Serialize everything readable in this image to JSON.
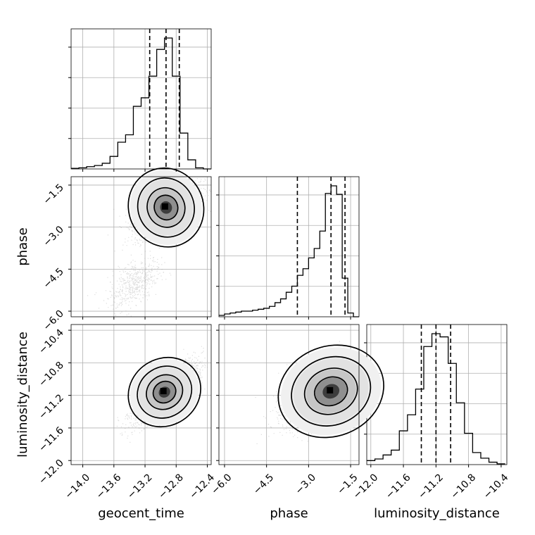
{
  "chart_data": {
    "type": "corner",
    "parameters": [
      "geocent_time",
      "phase",
      "luminosity_distance"
    ],
    "axis_labels": {
      "x": [
        "geocent_time",
        "phase",
        "luminosity_distance"
      ],
      "y": [
        "phase",
        "luminosity_distance"
      ]
    },
    "ranges": {
      "geocent_time": [
        -14.15,
        -12.35
      ],
      "phase": [
        -6.2,
        -1.2
      ],
      "luminosity_distance": [
        -12.05,
        -10.33
      ]
    },
    "ticks": {
      "geocent_time": [
        -14.0,
        -13.6,
        -13.2,
        -12.8,
        -12.4
      ],
      "phase": [
        -6.0,
        -4.5,
        -3.0,
        -1.5
      ],
      "luminosity_distance": [
        -12.0,
        -11.6,
        -11.2,
        -10.8,
        -10.4
      ]
    },
    "tick_labels": {
      "geocent_time": [
        "−14.0",
        "−13.6",
        "−13.2",
        "−12.8",
        "−12.4"
      ],
      "phase": [
        "−6.0",
        "−4.5",
        "−3.0",
        "−1.5"
      ],
      "luminosity_distance": [
        "−12.0",
        "−11.6",
        "−11.2",
        "−10.8",
        "−10.4"
      ]
    },
    "quantiles": {
      "geocent_time": [
        -13.14,
        -12.93,
        -12.76
      ],
      "phase": [
        -3.4,
        -2.2,
        -1.7
      ],
      "luminosity_distance": [
        -11.38,
        -11.2,
        -11.02
      ]
    },
    "histograms": {
      "geocent_time": {
        "edges": [
          -14.15,
          -14.05,
          -13.95,
          -13.85,
          -13.75,
          -13.65,
          -13.55,
          -13.45,
          -13.35,
          -13.25,
          -13.15,
          -13.05,
          -12.95,
          -12.85,
          -12.75,
          -12.65,
          -12.55,
          -12.45,
          -12.35
        ],
        "counts": [
          1,
          2,
          4,
          6,
          10,
          22,
          47,
          60,
          110,
          125,
          163,
          210,
          230,
          163,
          63,
          16,
          2,
          0
        ]
      },
      "phase": {
        "edges": [
          -6.2,
          -6.0,
          -5.8,
          -5.6,
          -5.4,
          -5.2,
          -5.0,
          -4.8,
          -4.6,
          -4.4,
          -4.2,
          -4.0,
          -3.8,
          -3.6,
          -3.4,
          -3.2,
          -3.0,
          -2.8,
          -2.6,
          -2.4,
          -2.2,
          -2.0,
          -1.8,
          -1.6,
          -1.4,
          -1.2
        ],
        "counts": [
          3,
          6,
          8,
          10,
          12,
          12,
          14,
          16,
          18,
          22,
          30,
          38,
          52,
          65,
          88,
          102,
          125,
          145,
          182,
          262,
          278,
          260,
          82,
          8,
          0
        ]
      },
      "luminosity_distance": {
        "edges": [
          -12.05,
          -11.95,
          -11.85,
          -11.75,
          -11.65,
          -11.55,
          -11.45,
          -11.35,
          -11.25,
          -11.15,
          -11.05,
          -10.95,
          -10.85,
          -10.75,
          -10.65,
          -10.55,
          -10.45,
          -10.35
        ],
        "counts": [
          5,
          7,
          12,
          18,
          42,
          62,
          94,
          147,
          163,
          159,
          126,
          77,
          39,
          15,
          8,
          3,
          1
        ]
      }
    },
    "scatter_panels": [
      {
        "x": "geocent_time",
        "y": "phase",
        "center": [
          -12.93,
          -2.3
        ],
        "sigma": [
          0.2,
          0.5
        ],
        "rho": 0.55,
        "tail": {
          "center": [
            -13.35,
            -5.0
          ],
          "sigma": [
            0.17,
            0.45
          ]
        }
      },
      {
        "x": "geocent_time",
        "y": "luminosity_distance",
        "center": [
          -12.95,
          -11.16
        ],
        "sigma": [
          0.2,
          0.18
        ],
        "rho": 0.8
      },
      {
        "x": "phase",
        "y": "luminosity_distance",
        "center": [
          -2.2,
          -11.15
        ],
        "sigma": [
          0.8,
          0.2
        ],
        "rho": 0.6
      }
    ],
    "grid": true,
    "line_color": "#000000",
    "point_color": "#9e9e9e",
    "quantile_style": "dashed"
  }
}
